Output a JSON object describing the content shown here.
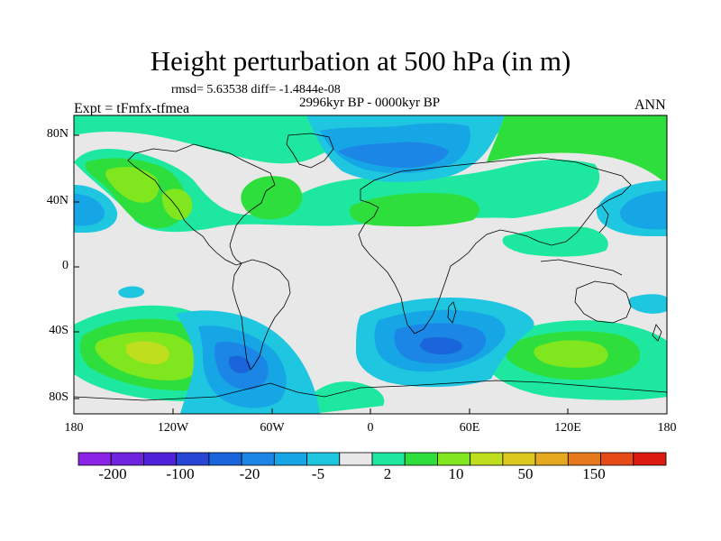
{
  "title": "Height perturbation at 500 hPa (in m)",
  "stats": "rmsd= 5.63538 diff= -1.4844e-08",
  "period": "2996kyr BP - 0000kyr BP",
  "experiment": "Expt = tFmfx-tfmea",
  "season": "ANN",
  "axes": {
    "y_ticks": [
      "80N",
      "40N",
      "0",
      "40S",
      "80S"
    ],
    "x_ticks": [
      "180",
      "120W",
      "60W",
      "0",
      "60E",
      "120E",
      "180"
    ]
  },
  "colorbar": {
    "colors": [
      "#8c24e6",
      "#6f24e0",
      "#4f21d9",
      "#2846d6",
      "#1a64dc",
      "#1c86e6",
      "#16a6e6",
      "#1fc6e0",
      "#e8e8e8",
      "#1ee8a0",
      "#2ede3c",
      "#80e61e",
      "#bede1e",
      "#dcc81e",
      "#e6a81e",
      "#e6781e",
      "#e64a16",
      "#dc1a10"
    ],
    "labels": [
      "-200",
      "-100",
      "-20",
      "-5",
      "2",
      "10",
      "50",
      "150"
    ]
  },
  "map_colors": {
    "background": "#e8e8e8",
    "pos1": "#1ee8a0",
    "pos2": "#2ede3c",
    "pos3": "#80e61e",
    "pos4": "#bede1e",
    "pos5": "#dcc81e",
    "neg1": "#1fc6e0",
    "neg2": "#16a6e6",
    "neg3": "#1c86e6",
    "neg4": "#1a64dc",
    "coast": "#000000"
  }
}
